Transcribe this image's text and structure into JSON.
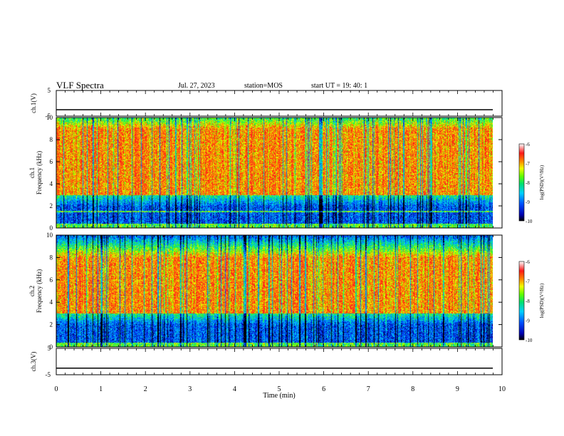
{
  "header": {
    "title": "VLF Spectra",
    "date": "Jul. 27, 2023",
    "station": "station=MOS",
    "start_ut": "start UT = 19: 40: 1"
  },
  "chart_data": [
    {
      "type": "line",
      "id": "ch1-waveform",
      "ylabel": "ch.1(V)",
      "yticks": [
        "5",
        "-5"
      ],
      "ylim": [
        -5,
        5
      ],
      "xlim": [
        0,
        10
      ],
      "series_level_v": -2.5
    },
    {
      "type": "heatmap",
      "id": "ch1-spectrogram",
      "ylabel": "ch.1 Frequency (kHz)",
      "yticks": [
        "0",
        "2",
        "4",
        "6",
        "8",
        "10"
      ],
      "ylim": [
        0,
        10
      ],
      "xlim": [
        0,
        10
      ],
      "colorbar": {
        "label": "log(PSD)(V²/Hz)",
        "ticks": [
          "-6",
          "-7",
          "-8",
          "-9",
          "-10"
        ],
        "range": [
          -10,
          -6
        ]
      },
      "description_bands_khz": {
        "strong": [
          3,
          9
        ],
        "noise_floor": [
          0.5,
          3
        ],
        "line_khz": 1.5
      }
    },
    {
      "type": "heatmap",
      "id": "ch2-spectrogram",
      "ylabel": "ch.2 Frequency (kHz)",
      "yticks": [
        "0",
        "2",
        "4",
        "6",
        "8",
        "10"
      ],
      "ylim": [
        0,
        10
      ],
      "xlim": [
        0,
        10
      ],
      "colorbar": {
        "label": "log(PSD)(V²/Hz)",
        "ticks": [
          "-6",
          "-7",
          "-8",
          "-9",
          "-10"
        ],
        "range": [
          -10,
          -6
        ]
      },
      "description_bands_khz": {
        "strong": [
          3,
          8
        ],
        "noise_floor": [
          0.5,
          3
        ]
      }
    },
    {
      "type": "line",
      "id": "ch3-waveform",
      "ylabel": "ch.3(V)",
      "yticks": [
        "5",
        "-5"
      ],
      "ylim": [
        -5,
        5
      ],
      "xlim": [
        0,
        10
      ],
      "series_level_v": -2.5
    }
  ],
  "xaxis": {
    "label": "Time (min)",
    "ticks": [
      "0",
      "1",
      "2",
      "3",
      "4",
      "5",
      "6",
      "7",
      "8",
      "9",
      "10"
    ]
  }
}
